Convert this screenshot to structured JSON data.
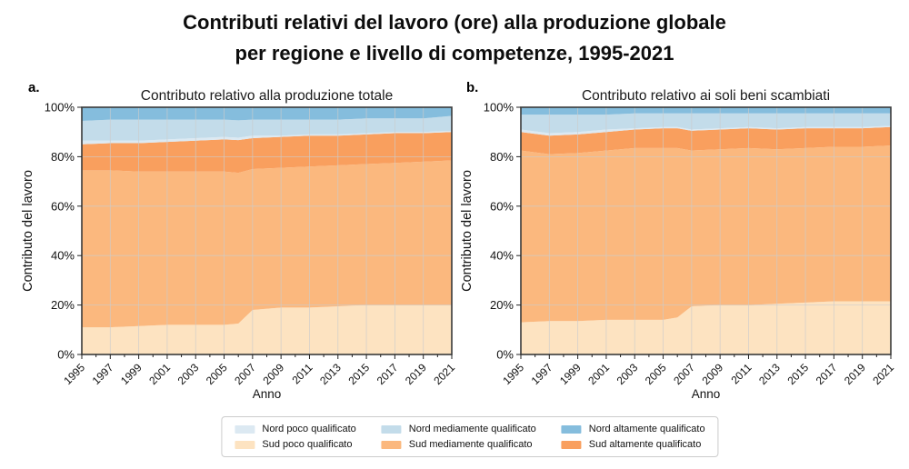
{
  "page": {
    "title_line1": "Contributi relativi del lavoro (ore) alla produzione globale",
    "title_line2": "per regione e livello di competenze, 1995-2021"
  },
  "colors": {
    "sud_poco": "#fde3c1",
    "sud_med": "#fbb87e",
    "sud_alt": "#f99f5e",
    "nord_poco": "#dce9f2",
    "nord_med": "#c3dcea",
    "nord_alt": "#85bddd",
    "grid": "#cccccc",
    "spine": "#3a3a3a",
    "tick_text": "#111111"
  },
  "legend": {
    "items": [
      {
        "key": "nord_poco",
        "label": "Nord poco qualificato"
      },
      {
        "key": "nord_med",
        "label": "Nord mediamente qualificato"
      },
      {
        "key": "nord_alt",
        "label": "Nord altamente qualificato"
      },
      {
        "key": "sud_poco",
        "label": "Sud poco qualificato"
      },
      {
        "key": "sud_med",
        "label": "Sud mediamente qualificato"
      },
      {
        "key": "sud_alt",
        "label": "Sud altamente qualificato"
      }
    ]
  },
  "chart_data": [
    {
      "id": "a",
      "panel_label": "a.",
      "title": "Contributo relativo alla produzione totale",
      "type": "area",
      "stacked": true,
      "units": "percent",
      "xlabel": "Anno",
      "ylabel": "Contributo del lavoro",
      "ylim": [
        0,
        100
      ],
      "yticks": [
        0,
        20,
        40,
        60,
        80,
        100
      ],
      "ytick_labels": [
        "0%",
        "20%",
        "40%",
        "60%",
        "80%",
        "100%"
      ],
      "xticks": [
        1995,
        1997,
        1999,
        2001,
        2003,
        2005,
        2007,
        2009,
        2011,
        2013,
        2015,
        2017,
        2019,
        2021
      ],
      "x": [
        1995,
        1997,
        1999,
        2001,
        2003,
        2005,
        2006,
        2007,
        2009,
        2011,
        2013,
        2015,
        2017,
        2019,
        2021
      ],
      "series": [
        {
          "key": "sud_poco",
          "values": [
            11,
            11,
            11.5,
            12,
            12,
            12,
            12.5,
            18,
            19,
            19,
            19.5,
            20,
            20,
            20,
            20
          ]
        },
        {
          "key": "sud_med",
          "values": [
            63.5,
            63.5,
            62.5,
            62,
            62,
            62,
            61,
            57,
            56.5,
            57,
            57,
            57,
            57.5,
            58,
            58.5
          ]
        },
        {
          "key": "sud_alt",
          "values": [
            10.5,
            11,
            11.5,
            12,
            12.5,
            13,
            13.2,
            12.5,
            12.5,
            12.5,
            12,
            12,
            12,
            11.5,
            11.5
          ]
        },
        {
          "key": "nord_poco",
          "values": [
            1.5,
            1,
            1,
            1,
            1,
            1,
            1,
            1,
            0.5,
            0.5,
            0.5,
            0.5,
            0.5,
            0.5,
            0.5
          ]
        },
        {
          "key": "nord_med",
          "values": [
            8,
            8.5,
            8.5,
            8,
            7.5,
            7,
            7,
            6.5,
            6.5,
            6,
            6,
            6,
            5.5,
            5.5,
            6
          ]
        },
        {
          "key": "nord_alt",
          "values": [
            5.5,
            5,
            5,
            5,
            5,
            5,
            5.3,
            5,
            5,
            5,
            5,
            4.5,
            4.5,
            4.5,
            3.5
          ]
        }
      ]
    },
    {
      "id": "b",
      "panel_label": "b.",
      "title": "Contributo relativo ai soli beni scambiati",
      "type": "area",
      "stacked": true,
      "units": "percent",
      "xlabel": "Anno",
      "ylabel": "Contributo del lavoro",
      "ylim": [
        0,
        100
      ],
      "yticks": [
        0,
        20,
        40,
        60,
        80,
        100
      ],
      "ytick_labels": [
        "0%",
        "20%",
        "40%",
        "60%",
        "80%",
        "100%"
      ],
      "xticks": [
        1995,
        1997,
        1999,
        2001,
        2003,
        2005,
        2007,
        2009,
        2011,
        2013,
        2015,
        2017,
        2019,
        2021
      ],
      "x": [
        1995,
        1997,
        1999,
        2001,
        2003,
        2005,
        2006,
        2007,
        2009,
        2011,
        2013,
        2015,
        2017,
        2019,
        2021
      ],
      "series": [
        {
          "key": "sud_poco",
          "values": [
            13,
            13.5,
            13.5,
            14,
            14,
            14,
            15,
            19.5,
            20,
            20,
            20.5,
            21,
            21.5,
            21.5,
            21.5
          ]
        },
        {
          "key": "sud_med",
          "values": [
            69.5,
            67.5,
            68,
            68.5,
            69.5,
            69.5,
            68.5,
            63,
            63,
            63.5,
            62.5,
            62.5,
            62.5,
            62.5,
            63
          ]
        },
        {
          "key": "sud_alt",
          "values": [
            7.5,
            7.5,
            7.5,
            7.5,
            7.5,
            8,
            8,
            8,
            8,
            8,
            8,
            8,
            7.5,
            7.5,
            7.5
          ]
        },
        {
          "key": "nord_poco",
          "values": [
            1,
            1,
            1,
            1,
            0.5,
            0.5,
            0.5,
            0.5,
            0.5,
            0.5,
            0.5,
            0.5,
            0.5,
            0.5,
            0.5
          ]
        },
        {
          "key": "nord_med",
          "values": [
            6,
            7.5,
            7,
            6,
            6,
            5.5,
            5.5,
            6.5,
            6,
            5.5,
            6,
            5.5,
            5.5,
            5.5,
            5
          ]
        },
        {
          "key": "nord_alt",
          "values": [
            3,
            3,
            3,
            3,
            2.5,
            2.5,
            2.5,
            2.5,
            2.5,
            2.5,
            2.5,
            2.5,
            2.5,
            2.5,
            2.5
          ]
        }
      ]
    }
  ]
}
